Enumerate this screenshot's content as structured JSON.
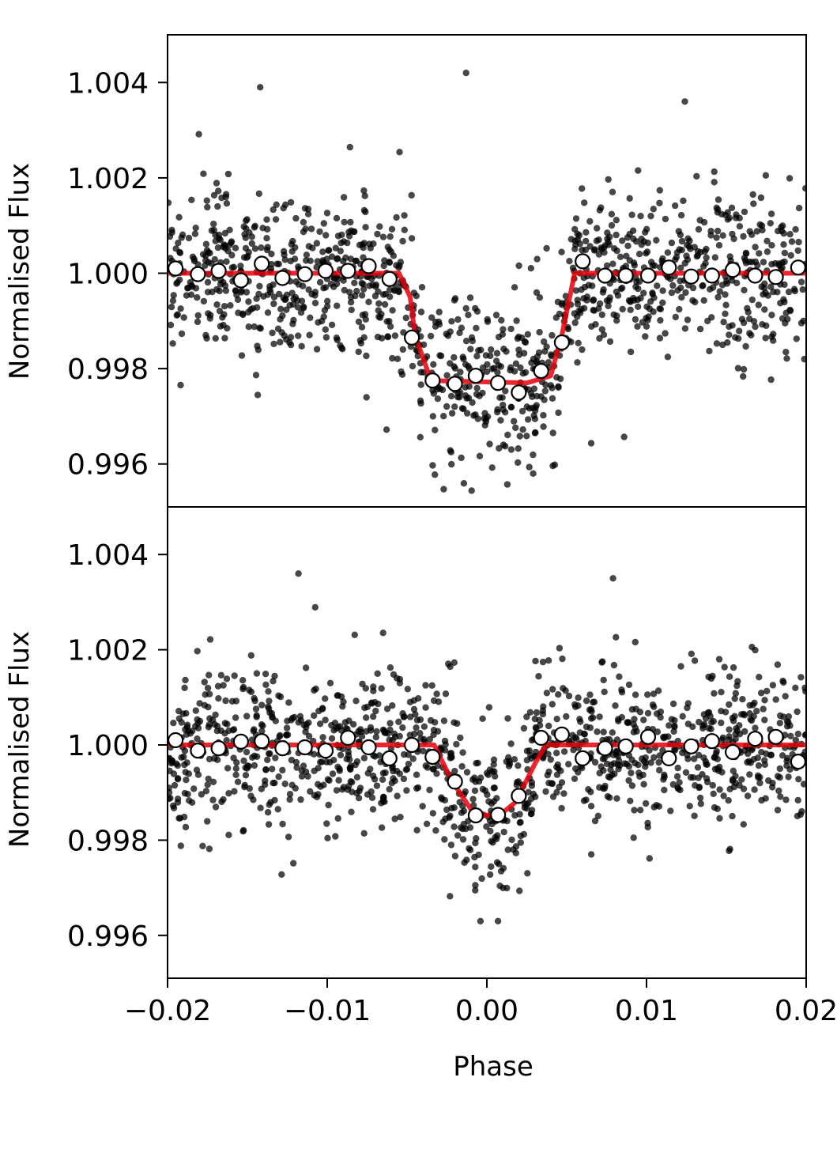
{
  "chart_data": [
    {
      "type": "scatter",
      "xlabel": "",
      "ylabel": "Normalised Flux",
      "xlim": [
        -0.02,
        0.02
      ],
      "ylim": [
        0.9951,
        1.005
      ],
      "yticks": [
        "0.996",
        "0.998",
        "1.000",
        "1.002",
        "1.004"
      ],
      "ytick_values": [
        0.996,
        0.998,
        1.0,
        1.002,
        1.004
      ],
      "series": [
        {
          "role": "raw-points",
          "color": "#000000",
          "noise_sigma": 0.00085,
          "point_count": 1250,
          "outliers": [
            {
              "x": -0.0142,
              "y": 1.0039
            },
            {
              "x": -0.0013,
              "y": 1.0042
            },
            {
              "x": 0.0124,
              "y": 1.0036
            }
          ]
        },
        {
          "role": "model",
          "color": "#e8000b",
          "x": [
            -0.02,
            -0.0055,
            -0.0048,
            -0.0045,
            -0.0035,
            0.0025,
            0.004,
            0.0047,
            0.0055,
            0.02
          ],
          "y": [
            1.0,
            1.0,
            0.9995,
            0.9987,
            0.99775,
            0.9977,
            0.99785,
            0.9987,
            1.0,
            1.0
          ]
        },
        {
          "role": "binned",
          "color": "#ffffff",
          "x": [
            -0.0195,
            -0.0181,
            -0.0168,
            -0.0154,
            -0.0141,
            -0.0128,
            -0.0114,
            -0.0101,
            -0.0087,
            -0.0074,
            -0.0061,
            -0.0047,
            -0.0034,
            -0.002,
            -0.0007,
            0.0007,
            0.002,
            0.0034,
            0.0047,
            0.006,
            0.0074,
            0.0087,
            0.0101,
            0.0114,
            0.0128,
            0.0141,
            0.0154,
            0.0168,
            0.0181,
            0.0195
          ],
          "y": [
            1.0001,
            0.99998,
            1.00005,
            0.99985,
            1.0002,
            0.9999,
            0.99998,
            1.00005,
            1.00005,
            1.00015,
            0.99988,
            0.99865,
            0.99775,
            0.99768,
            0.99785,
            0.9977,
            0.9975,
            0.99795,
            0.99855,
            1.00025,
            0.99995,
            0.99995,
            0.99995,
            1.00012,
            0.99993,
            0.99995,
            1.00007,
            0.99995,
            0.99992,
            1.00012
          ]
        }
      ]
    },
    {
      "type": "scatter",
      "xlabel": "Phase",
      "ylabel": "Normalised Flux",
      "xlim": [
        -0.02,
        0.02
      ],
      "ylim": [
        0.9951,
        1.005
      ],
      "xticks": [
        "−0.02",
        "−0.01",
        "0.00",
        "0.01",
        "0.02"
      ],
      "xtick_values": [
        -0.02,
        -0.01,
        0.0,
        0.01,
        0.02
      ],
      "yticks": [
        "0.996",
        "0.998",
        "1.000",
        "1.002",
        "1.004"
      ],
      "ytick_values": [
        0.996,
        0.998,
        1.0,
        1.002,
        1.004
      ],
      "series": [
        {
          "role": "raw-points",
          "color": "#000000",
          "noise_sigma": 0.00085,
          "point_count": 1250,
          "outliers": [
            {
              "x": -0.0118,
              "y": 1.0036
            },
            {
              "x": 0.0079,
              "y": 1.0035
            },
            {
              "x": 0.0007,
              "y": 0.9963
            },
            {
              "x": -0.0004,
              "y": 0.9963
            }
          ]
        },
        {
          "role": "model",
          "color": "#e8000b",
          "x": [
            -0.02,
            -0.0033,
            -0.0022,
            -0.001,
            0.0,
            0.001,
            0.0018,
            0.003,
            0.0037,
            0.02
          ],
          "y": [
            1.0,
            1.0,
            0.99925,
            0.99865,
            0.99852,
            0.99858,
            0.9988,
            0.9996,
            1.0,
            1.0
          ]
        },
        {
          "role": "binned",
          "color": "#ffffff",
          "x": [
            -0.0195,
            -0.0181,
            -0.0168,
            -0.0154,
            -0.0141,
            -0.0128,
            -0.0114,
            -0.0101,
            -0.0087,
            -0.0074,
            -0.0061,
            -0.0047,
            -0.0034,
            -0.002,
            -0.0007,
            0.0007,
            0.002,
            0.0034,
            0.0047,
            0.006,
            0.0074,
            0.0087,
            0.0101,
            0.0114,
            0.0128,
            0.0141,
            0.0154,
            0.0168,
            0.0181,
            0.0195
          ],
          "y": [
            1.0001,
            0.99988,
            0.99993,
            1.00007,
            1.00008,
            0.99993,
            0.99995,
            0.99988,
            1.00015,
            0.99995,
            0.99972,
            1.0,
            0.99975,
            0.99923,
            0.99852,
            0.99853,
            0.99893,
            1.00015,
            1.00022,
            0.99972,
            0.99993,
            0.99997,
            1.00017,
            0.99972,
            0.99997,
            1.00008,
            0.99985,
            1.00013,
            1.00017,
            0.99965
          ]
        }
      ]
    }
  ]
}
